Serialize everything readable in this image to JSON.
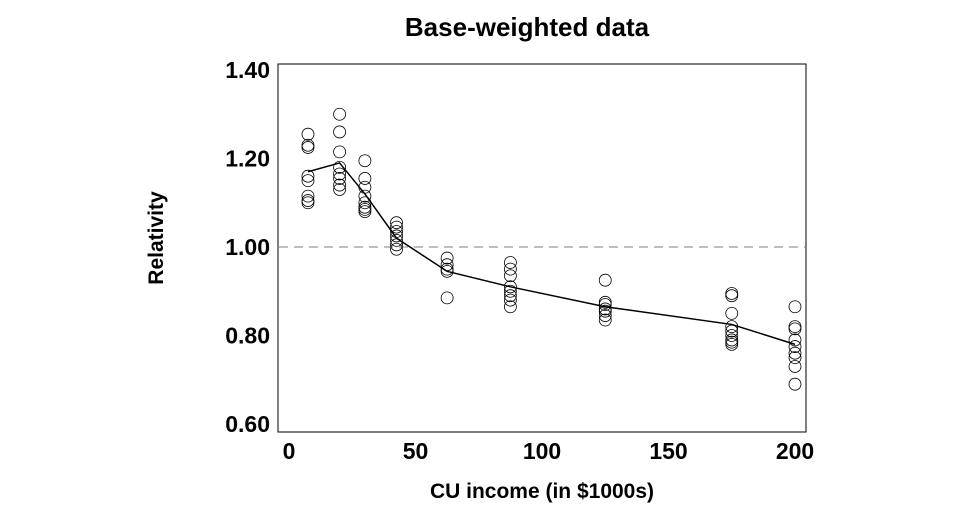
{
  "chart_data": {
    "type": "scatter",
    "title": "Base-weighted data",
    "xlabel": "CU income (in $1000s)",
    "ylabel": "Relativity",
    "xlim": [
      -4,
      204
    ],
    "ylim": [
      0.6,
      1.4
    ],
    "xticks": [
      0,
      50,
      100,
      150,
      200
    ],
    "xtick_labels": [
      "0",
      "50",
      "100",
      "150",
      "200"
    ],
    "yticks": [
      0.6,
      0.8,
      1.0,
      1.2,
      1.4
    ],
    "ytick_labels": [
      "0.60",
      "0.80",
      "1.00",
      "1.20",
      "1.40"
    ],
    "grid": false,
    "reference_line": {
      "y": 1.0,
      "style": "dashed",
      "color": "#999999"
    },
    "points": [
      {
        "x": 7.5,
        "y": [
          1.255,
          1.23,
          1.225,
          1.16,
          1.15,
          1.115,
          1.105,
          1.1
        ]
      },
      {
        "x": 20,
        "y": [
          1.3,
          1.26,
          1.215,
          1.18,
          1.165,
          1.155,
          1.14,
          1.13
        ]
      },
      {
        "x": 30,
        "y": [
          1.195,
          1.155,
          1.135,
          1.115,
          1.1,
          1.09,
          1.085,
          1.08
        ]
      },
      {
        "x": 42.5,
        "y": [
          1.055,
          1.045,
          1.035,
          1.025,
          1.015,
          1.005,
          0.995
        ]
      },
      {
        "x": 62.5,
        "y": [
          0.975,
          0.96,
          0.95,
          0.945,
          0.885
        ]
      },
      {
        "x": 87.5,
        "y": [
          0.965,
          0.95,
          0.935,
          0.91,
          0.9,
          0.89,
          0.88,
          0.865
        ]
      },
      {
        "x": 125,
        "y": [
          0.925,
          0.875,
          0.87,
          0.86,
          0.855,
          0.845,
          0.835
        ]
      },
      {
        "x": 175,
        "y": [
          0.895,
          0.89,
          0.85,
          0.82,
          0.81,
          0.8,
          0.79,
          0.785,
          0.78
        ]
      },
      {
        "x": 200,
        "y": [
          0.865,
          0.82,
          0.815,
          0.79,
          0.775,
          0.76,
          0.75,
          0.73,
          0.69
        ]
      }
    ],
    "fit_line": {
      "x": [
        7.5,
        20,
        30,
        42.5,
        62.5,
        87.5,
        125,
        175,
        200
      ],
      "y": [
        1.17,
        1.19,
        1.12,
        1.02,
        0.945,
        0.91,
        0.865,
        0.825,
        0.78
      ],
      "color": "#000000"
    },
    "marker": "open-circle",
    "marker_color": "#000000"
  }
}
